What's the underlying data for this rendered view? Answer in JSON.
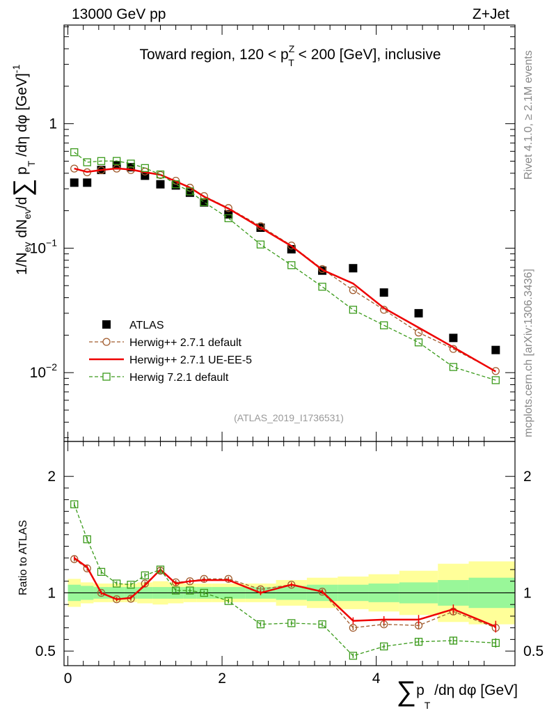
{
  "header": {
    "left": "13000 GeV pp",
    "right": "Z+Jet"
  },
  "side_text": {
    "rivet": "Rivet 4.1.0, ≥ 2.1M events",
    "mcplots": "mcplots.cern.ch [arXiv:1306.3436]"
  },
  "colors": {
    "atlas": "#000000",
    "herwig_default": "#a05a2c",
    "herwig_ue": "#ee0000",
    "herwig72": "#3a9a1a",
    "band_inner": "#99f799",
    "band_outer": "#ffff99"
  },
  "chart_data": [
    {
      "type": "scatter",
      "title": "Toward region, 120 < p_T^Z < 200 [GeV], inclusive",
      "title_parts": {
        "pre": "Toward region, 120 < p",
        "sup": "Z",
        "sub": "T",
        "post": " < 200 [GeV], inclusive"
      },
      "ylabel": "1/N_ev dN_ev/d∑p_T/dη dφ [GeV]^-1",
      "ylabel_parts": {
        "a": "1/N",
        "a_sub": "ev",
        "b": " dN",
        "b_sub": "ev",
        "c": "/d",
        "sum": "∑",
        "d": " p",
        "d_sub": "T",
        "e": " /dη dφ  [GeV]",
        "e_sup": "-1"
      },
      "yscale": "log",
      "ylim": [
        0.0028,
        6.2
      ],
      "xlim": [
        -0.05,
        5.8
      ],
      "ytick_labels": [
        "10^-2",
        "10^-1",
        "1"
      ],
      "yticks": [
        0.01,
        0.1,
        1
      ],
      "analysis_label": "(ATLAS_2019_I1736531)",
      "x": [
        0.083,
        0.25,
        0.433,
        0.633,
        0.817,
        1.0,
        1.2,
        1.4,
        1.583,
        1.767,
        2.083,
        2.5,
        2.9,
        3.3,
        3.7,
        4.1,
        4.55,
        5.0,
        5.55
      ],
      "series": [
        {
          "name": "ATLAS",
          "marker": "square-filled",
          "values": [
            0.336,
            0.336,
            0.425,
            0.463,
            0.447,
            0.382,
            0.326,
            0.319,
            0.279,
            0.233,
            0.187,
            0.146,
            0.098,
            0.066,
            0.069,
            0.044,
            0.03,
            0.019,
            0.0152
          ]
        },
        {
          "name": "Herwig++ 2.7.1 default",
          "marker": "circle-open",
          "style": "dashed",
          "values": [
            0.436,
            0.407,
            0.423,
            0.436,
            0.424,
            0.413,
            0.387,
            0.348,
            0.306,
            0.262,
            0.21,
            0.15,
            0.105,
            0.068,
            0.046,
            0.032,
            0.021,
            0.0155,
            0.0103
          ]
        },
        {
          "name": "Herwig++ 2.7.1 UE-EE-5",
          "marker": "none",
          "style": "solid",
          "values": [
            0.436,
            0.41,
            0.424,
            0.437,
            0.428,
            0.407,
            0.389,
            0.344,
            0.307,
            0.259,
            0.208,
            0.146,
            0.104,
            0.067,
            0.052,
            0.033,
            0.023,
            0.016,
            0.0102
          ]
        },
        {
          "name": "Herwig 7.2.1 default",
          "marker": "square-open",
          "style": "dashed",
          "values": [
            0.59,
            0.49,
            0.501,
            0.502,
            0.478,
            0.44,
            0.391,
            0.326,
            0.286,
            0.234,
            0.174,
            0.107,
            0.073,
            0.049,
            0.032,
            0.024,
            0.0175,
            0.0111,
            0.0087
          ]
        }
      ],
      "legend": "middle-left"
    },
    {
      "type": "line",
      "ylabel": "Ratio to ATLAS",
      "xlabel": "∑p_T/dη dφ [GeV]",
      "xlabel_parts": {
        "sum": "∑",
        "p": "p",
        "sub": "T",
        "rest": " /dη dφ [GeV]"
      },
      "xlim": [
        -0.05,
        5.8
      ],
      "ylim": [
        0.375,
        2.3
      ],
      "yticks": [
        0.5,
        1,
        2
      ],
      "ytick_labels": [
        "0.5",
        "1",
        "2"
      ],
      "xticks": [
        0,
        2,
        4
      ],
      "xtick_labels": [
        "0",
        "2",
        "4"
      ],
      "x_edges": [
        0.0,
        0.167,
        0.333,
        0.533,
        0.733,
        0.9,
        1.1,
        1.3,
        1.5,
        1.667,
        1.867,
        2.3,
        2.7,
        3.1,
        3.5,
        3.9,
        4.3,
        4.8,
        5.2,
        5.8
      ],
      "band_inner": [
        0.07,
        0.06,
        0.05,
        0.05,
        0.05,
        0.05,
        0.05,
        0.05,
        0.05,
        0.05,
        0.05,
        0.05,
        0.06,
        0.07,
        0.07,
        0.08,
        0.09,
        0.11,
        0.13
      ],
      "band_outer": [
        0.12,
        0.09,
        0.08,
        0.08,
        0.08,
        0.09,
        0.1,
        0.09,
        0.08,
        0.08,
        0.08,
        0.08,
        0.11,
        0.13,
        0.14,
        0.16,
        0.19,
        0.25,
        0.27
      ],
      "x": [
        0.083,
        0.25,
        0.433,
        0.633,
        0.817,
        1.0,
        1.2,
        1.4,
        1.583,
        1.767,
        2.083,
        2.5,
        2.9,
        3.3,
        3.7,
        4.1,
        4.55,
        5.0,
        5.55
      ],
      "series": [
        {
          "name": "Herwig++ 2.7.1 default",
          "marker": "circle-open",
          "style": "dashed",
          "values": [
            1.29,
            1.21,
            1.0,
            0.945,
            0.95,
            1.08,
            1.19,
            1.09,
            1.1,
            1.12,
            1.12,
            1.03,
            1.07,
            1.01,
            0.7,
            0.73,
            0.72,
            0.84,
            0.7
          ],
          "errors": [
            0.02,
            0.02,
            0.02,
            0.02,
            0.02,
            0.02,
            0.02,
            0.02,
            0.02,
            0.02,
            0.02,
            0.02,
            0.02,
            0.02,
            0.02,
            0.02,
            0.03,
            0.03,
            0.04
          ]
        },
        {
          "name": "Herwig++ 2.7.1 UE-EE-5",
          "marker": "none",
          "style": "solid",
          "values": [
            1.3,
            1.22,
            1.0,
            0.945,
            0.957,
            1.065,
            1.2,
            1.08,
            1.1,
            1.11,
            1.11,
            1.0,
            1.07,
            1.01,
            0.76,
            0.77,
            0.77,
            0.86,
            0.71
          ],
          "errors": [
            0.015,
            0.015,
            0.015,
            0.015,
            0.015,
            0.015,
            0.015,
            0.015,
            0.015,
            0.015,
            0.015,
            0.02,
            0.02,
            0.02,
            0.03,
            0.03,
            0.04,
            0.04,
            0.05
          ]
        },
        {
          "name": "Herwig 7.2.1 default",
          "marker": "square-open",
          "style": "dashed",
          "values": [
            1.76,
            1.46,
            1.18,
            1.08,
            1.07,
            1.15,
            1.2,
            1.02,
            1.02,
            1.0,
            0.93,
            0.73,
            0.74,
            0.73,
            0.46,
            0.54,
            0.58,
            0.59,
            0.57
          ],
          "errors": [
            0.02,
            0.02,
            0.02,
            0.02,
            0.02,
            0.02,
            0.02,
            0.02,
            0.02,
            0.02,
            0.02,
            0.02,
            0.02,
            0.02,
            0.02,
            0.02,
            0.03,
            0.03,
            0.04
          ]
        }
      ]
    }
  ]
}
